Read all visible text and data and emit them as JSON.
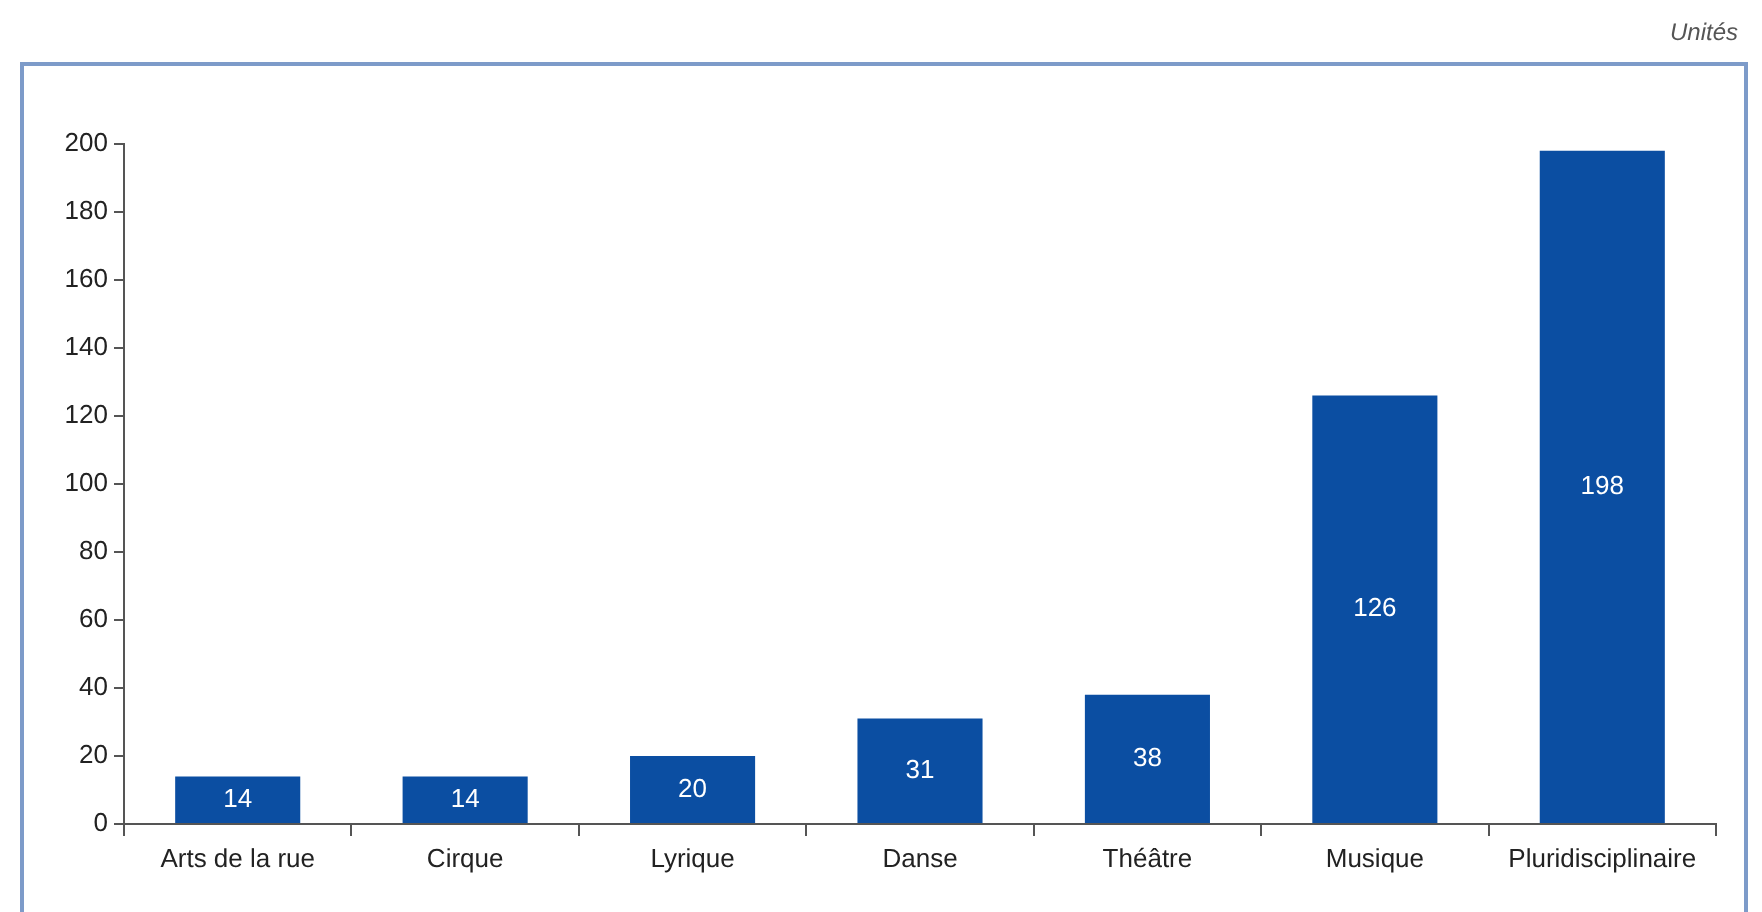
{
  "chart_data": {
    "type": "bar",
    "annotations": [
      "Unités"
    ],
    "categories": [
      "Arts de la rue",
      "Cirque",
      "Lyrique",
      "Danse",
      "Théâtre",
      "Musique",
      "Pluridisciplinaire"
    ],
    "values": [
      14,
      14,
      20,
      31,
      38,
      126,
      198
    ],
    "color": "#0b4ea2",
    "ylim": [
      0,
      200
    ],
    "yticks": [
      0,
      20,
      40,
      60,
      80,
      100,
      120,
      140,
      160,
      180,
      200
    ],
    "grid": false,
    "legend": false,
    "data_labels": true
  }
}
